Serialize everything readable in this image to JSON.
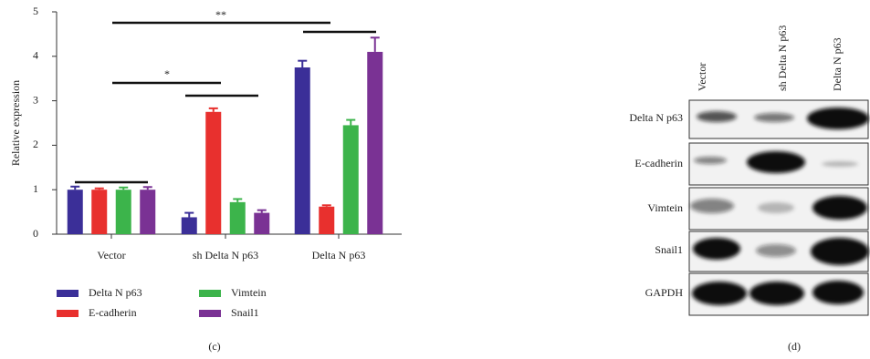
{
  "chart_data": {
    "type": "bar",
    "ylabel": "Relative expression",
    "caption": "(c)",
    "categories": [
      "Vector",
      "sh Delta N p63",
      "Delta N p63"
    ],
    "series": [
      {
        "name": "Delta N p63",
        "color": "#3b2f98",
        "values": [
          1.0,
          0.38,
          3.75
        ],
        "errors": [
          0.07,
          0.1,
          0.15
        ]
      },
      {
        "name": "E-cadherin",
        "color": "#e8302e",
        "values": [
          1.0,
          2.75,
          0.62
        ],
        "errors": [
          0.03,
          0.08,
          0.03
        ]
      },
      {
        "name": "Vimtein",
        "color": "#3cb44b",
        "values": [
          1.0,
          0.72,
          2.45
        ],
        "errors": [
          0.05,
          0.07,
          0.12
        ]
      },
      {
        "name": "Snail1",
        "color": "#7a3294",
        "values": [
          1.0,
          0.48,
          4.1
        ],
        "errors": [
          0.06,
          0.06,
          0.32
        ]
      }
    ],
    "annotations": [
      "**",
      "*"
    ],
    "ylim": [
      0,
      5
    ],
    "yticks": [
      0,
      1,
      2,
      3,
      4,
      5
    ]
  },
  "blot": {
    "caption": "(d)",
    "columns": [
      "Vector",
      "sh Delta N p63",
      "Delta N p63"
    ],
    "rows": [
      "Delta N p63",
      "E-cadherin",
      "Vimtein",
      "Snail1",
      "GAPDH"
    ]
  }
}
